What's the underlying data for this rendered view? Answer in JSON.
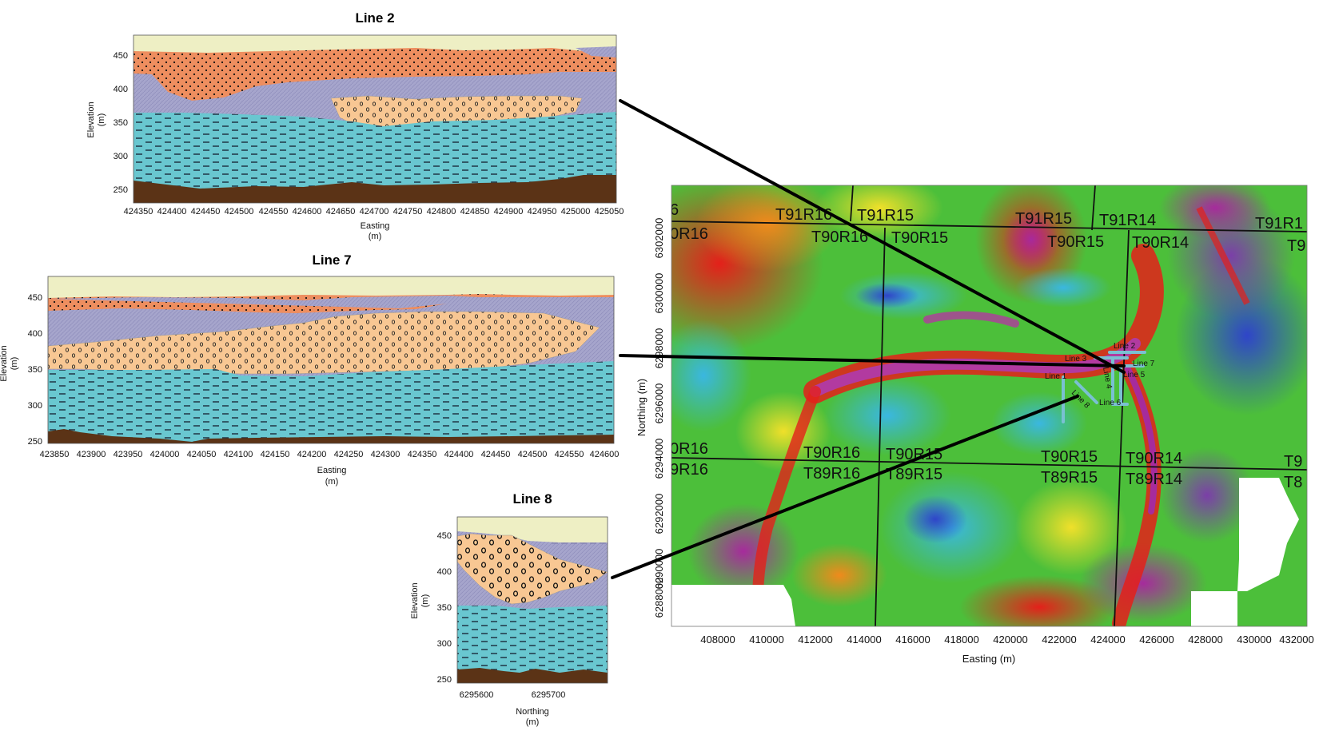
{
  "sections": [
    {
      "id": "line2",
      "title": "Line 2",
      "ylabel": [
        "Elevation",
        "(m)"
      ],
      "xlabel": [
        "Easting",
        "(m)"
      ],
      "yticks": [
        "450",
        "400",
        "350",
        "300",
        "250"
      ],
      "xticks": [
        "424350",
        "424400",
        "424450",
        "424500",
        "424550",
        "424600",
        "424650",
        "424700",
        "424750",
        "424800",
        "424850",
        "424900",
        "424950",
        "425000",
        "425050"
      ]
    },
    {
      "id": "line7",
      "title": "Line 7",
      "ylabel": [
        "Elevation",
        "(m)"
      ],
      "xlabel": [
        "Easting",
        "(m)"
      ],
      "yticks": [
        "450",
        "400",
        "350",
        "300",
        "250"
      ],
      "xticks": [
        "423850",
        "423900",
        "423950",
        "424000",
        "424050",
        "424100",
        "424150",
        "424200",
        "424250",
        "424300",
        "424350",
        "424400",
        "424450",
        "424500",
        "424550",
        "424600"
      ]
    },
    {
      "id": "line8",
      "title": "Line 8",
      "ylabel": [
        "Elevation",
        "(m)"
      ],
      "xlabel": [
        "Northing",
        "(m)"
      ],
      "yticks": [
        "450",
        "400",
        "350",
        "300",
        "250"
      ],
      "xticks": [
        "6295600",
        "6295700"
      ]
    }
  ],
  "map": {
    "xlabel": "Easting (m)",
    "ylabel": "Northing (m)",
    "xticks": [
      "408000",
      "410000",
      "412000",
      "414000",
      "416000",
      "418000",
      "420000",
      "422000",
      "424000",
      "426000",
      "428000",
      "430000",
      "432000"
    ],
    "yticks": [
      "6302000",
      "6300000",
      "6298000",
      "6296000",
      "6294000",
      "6292000",
      "6290000",
      "6288000"
    ],
    "townships": [
      "T91R16",
      "T91R15",
      "T91R15",
      "T91R14",
      "T91R1",
      "0R16",
      "T90R16",
      "T90R15",
      "T90R15",
      "T90R14",
      "T9",
      "0R16",
      "T90R16",
      "T90R15",
      "T90R15",
      "T90R14",
      "T9",
      "9R16",
      "T89R16",
      "T89R15",
      "T89R15",
      "T89R14",
      "T8",
      "6"
    ],
    "survey_lines": [
      "Line 2",
      "Line 3",
      "Line 7",
      "Line 4",
      "Line 5",
      "Line 1",
      "Line 8",
      "Line 6"
    ]
  },
  "colors": {
    "cover": "#eeefc4",
    "sand": "#ee8e5f",
    "clay": "#a6a5cc",
    "gravel": "#f8c793",
    "aquifer": "#69c7d0",
    "bedrock": "#5b3316",
    "survey_line": "#7ac0d2"
  }
}
